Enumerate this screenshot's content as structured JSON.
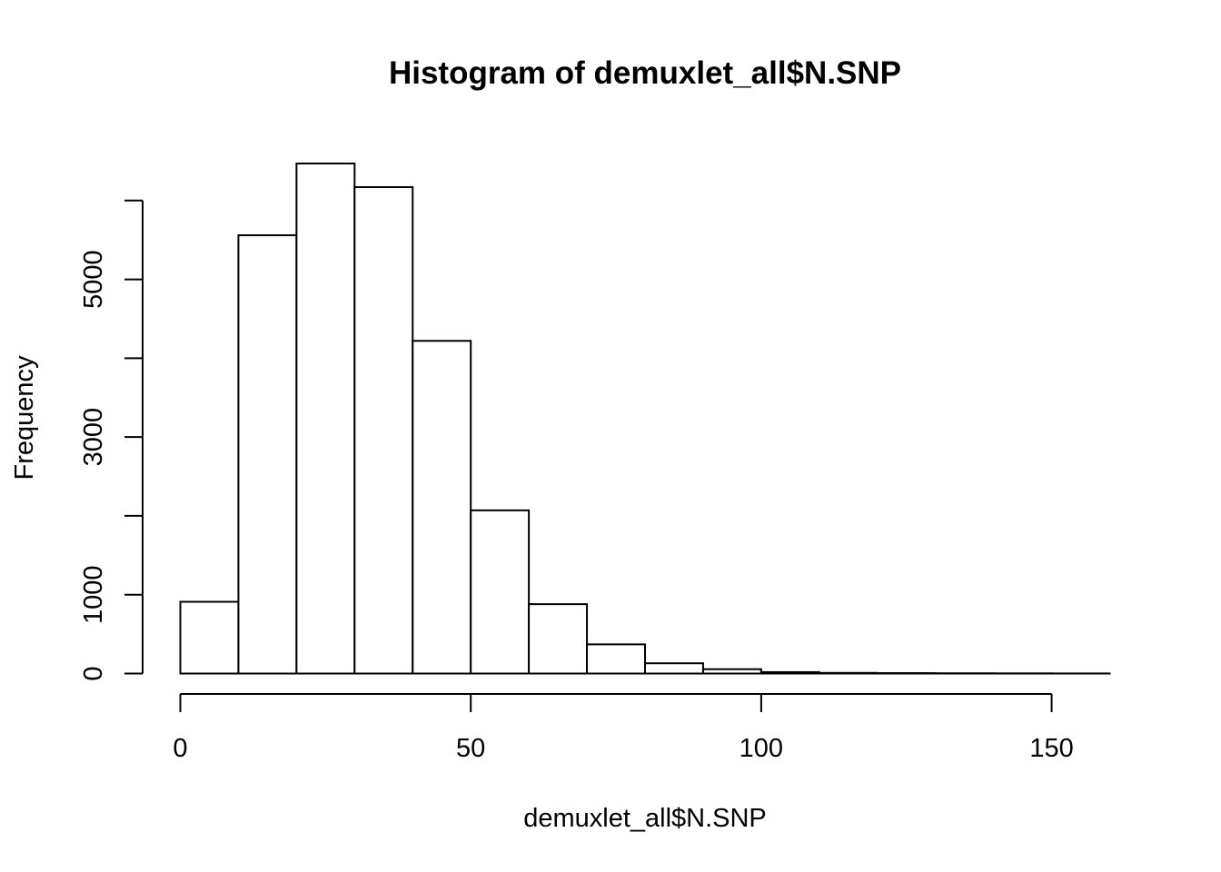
{
  "chart_data": {
    "type": "bar",
    "title": "Histogram of demuxlet_all$N.SNP",
    "xlabel": "demuxlet_all$N.SNP",
    "ylabel": "Frequency",
    "bin_edges": [
      0,
      10,
      20,
      30,
      40,
      50,
      60,
      70,
      80,
      90,
      100,
      110,
      120,
      130,
      140,
      150,
      160
    ],
    "values": [
      910,
      5560,
      6470,
      6170,
      4220,
      2070,
      880,
      370,
      130,
      55,
      18,
      8,
      5,
      3,
      2,
      1
    ],
    "xlim": [
      0,
      160
    ],
    "ylim": [
      0,
      6470
    ],
    "x_ticks": [
      0,
      50,
      100,
      150
    ],
    "x_tick_labels": [
      "0",
      "50",
      "100",
      "150"
    ],
    "y_ticks": [
      0,
      1000,
      2000,
      3000,
      4000,
      5000,
      6000
    ],
    "y_tick_labels": [
      "0",
      "1000",
      "",
      "3000",
      "",
      "5000",
      ""
    ],
    "grid": false,
    "legend": "none",
    "bar_fill": "#ffffff",
    "bar_stroke": "#000000"
  }
}
